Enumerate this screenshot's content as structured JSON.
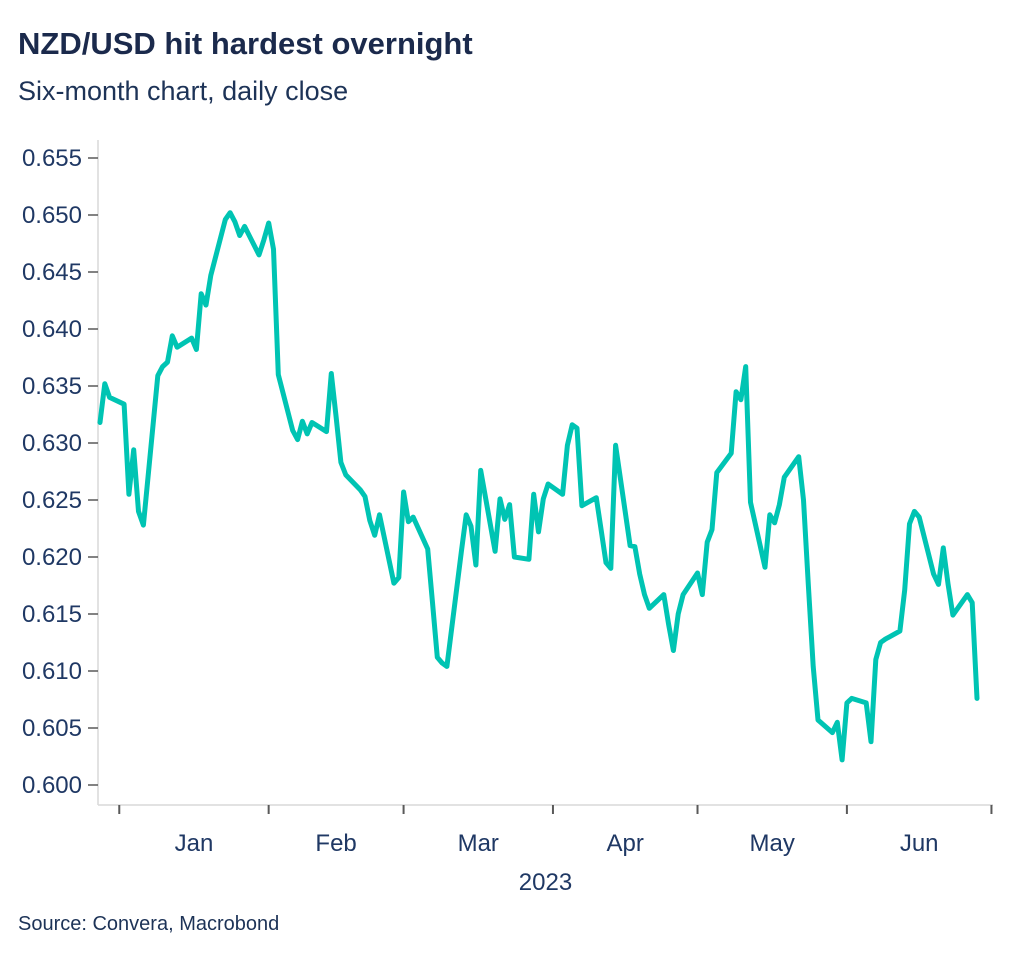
{
  "header": {
    "title": "NZD/USD hit hardest overnight",
    "subtitle": "Six-month chart, daily close"
  },
  "footer": {
    "source": "Source: Convera, Macrobond"
  },
  "colors": {
    "line": "#00C4B3",
    "title_text": "#1B2A4C",
    "axis_label_text": "#1F3864",
    "axis_line": "#D9D9D9",
    "tick_mark": "#595959",
    "background": "#FFFFFF"
  },
  "chart_data": {
    "type": "line",
    "title": "NZD/USD hit hardest overnight",
    "subtitle": "Six-month chart, daily close",
    "source": "Source: Convera, Macrobond",
    "legend": "none",
    "grid": "off",
    "x_axis": {
      "year_label": "2023",
      "month_labels": [
        "Jan",
        "Feb",
        "Mar",
        "Apr",
        "May",
        "Jun"
      ],
      "month_tick_dates": [
        "2023-01-01",
        "2023-02-01",
        "2023-03-01",
        "2023-04-01",
        "2023-05-01",
        "2023-06-01",
        "2023-07-01"
      ],
      "range_dates": [
        "2022-12-28",
        "2023-06-28"
      ]
    },
    "y_axis": {
      "ticks": [
        0.6,
        0.605,
        0.61,
        0.615,
        0.62,
        0.625,
        0.63,
        0.635,
        0.64,
        0.645,
        0.65,
        0.655
      ],
      "tick_decimals": 3,
      "ylim": [
        0.5982,
        0.6566
      ]
    },
    "series": [
      {
        "name": "NZD/USD daily close",
        "color": "#00C4B3",
        "points": [
          [
            "2022-12-28",
            0.6318
          ],
          [
            "2022-12-29",
            0.6352
          ],
          [
            "2022-12-30",
            0.634
          ],
          [
            "2023-01-02",
            0.6334
          ],
          [
            "2023-01-03",
            0.6255
          ],
          [
            "2023-01-04",
            0.6294
          ],
          [
            "2023-01-05",
            0.624
          ],
          [
            "2023-01-06",
            0.6228
          ],
          [
            "2023-01-09",
            0.6359
          ],
          [
            "2023-01-10",
            0.6367
          ],
          [
            "2023-01-11",
            0.6371
          ],
          [
            "2023-01-12",
            0.6394
          ],
          [
            "2023-01-13",
            0.6384
          ],
          [
            "2023-01-16",
            0.6392
          ],
          [
            "2023-01-17",
            0.6382
          ],
          [
            "2023-01-18",
            0.6431
          ],
          [
            "2023-01-19",
            0.6421
          ],
          [
            "2023-01-20",
            0.6447
          ],
          [
            "2023-01-23",
            0.6496
          ],
          [
            "2023-01-24",
            0.6502
          ],
          [
            "2023-01-25",
            0.6494
          ],
          [
            "2023-01-26",
            0.6482
          ],
          [
            "2023-01-27",
            0.649
          ],
          [
            "2023-01-30",
            0.6465
          ],
          [
            "2023-01-31",
            0.6478
          ],
          [
            "2023-02-01",
            0.6493
          ],
          [
            "2023-02-02",
            0.647
          ],
          [
            "2023-02-03",
            0.636
          ],
          [
            "2023-02-06",
            0.6311
          ],
          [
            "2023-02-07",
            0.6303
          ],
          [
            "2023-02-08",
            0.6319
          ],
          [
            "2023-02-09",
            0.6308
          ],
          [
            "2023-02-10",
            0.6318
          ],
          [
            "2023-02-13",
            0.631
          ],
          [
            "2023-02-14",
            0.6361
          ],
          [
            "2023-02-15",
            0.6323
          ],
          [
            "2023-02-16",
            0.6283
          ],
          [
            "2023-02-17",
            0.6272
          ],
          [
            "2023-02-20",
            0.6259
          ],
          [
            "2023-02-21",
            0.6253
          ],
          [
            "2023-02-22",
            0.6232
          ],
          [
            "2023-02-23",
            0.6219
          ],
          [
            "2023-02-24",
            0.6237
          ],
          [
            "2023-02-27",
            0.6177
          ],
          [
            "2023-02-28",
            0.6182
          ],
          [
            "2023-03-01",
            0.6257
          ],
          [
            "2023-03-02",
            0.6231
          ],
          [
            "2023-03-03",
            0.6235
          ],
          [
            "2023-03-06",
            0.6207
          ],
          [
            "2023-03-07",
            0.616
          ],
          [
            "2023-03-08",
            0.6112
          ],
          [
            "2023-03-09",
            0.6107
          ],
          [
            "2023-03-10",
            0.6104
          ],
          [
            "2023-03-13",
            0.6205
          ],
          [
            "2023-03-14",
            0.6237
          ],
          [
            "2023-03-15",
            0.6227
          ],
          [
            "2023-03-16",
            0.6193
          ],
          [
            "2023-03-17",
            0.6276
          ],
          [
            "2023-03-20",
            0.6205
          ],
          [
            "2023-03-21",
            0.6251
          ],
          [
            "2023-03-22",
            0.6233
          ],
          [
            "2023-03-23",
            0.6246
          ],
          [
            "2023-03-24",
            0.62
          ],
          [
            "2023-03-27",
            0.6198
          ],
          [
            "2023-03-28",
            0.6255
          ],
          [
            "2023-03-29",
            0.6222
          ],
          [
            "2023-03-30",
            0.6251
          ],
          [
            "2023-03-31",
            0.6264
          ],
          [
            "2023-04-03",
            0.6255
          ],
          [
            "2023-04-04",
            0.6298
          ],
          [
            "2023-04-05",
            0.6316
          ],
          [
            "2023-04-06",
            0.6313
          ],
          [
            "2023-04-07",
            0.6245
          ],
          [
            "2023-04-10",
            0.6252
          ],
          [
            "2023-04-11",
            0.6224
          ],
          [
            "2023-04-12",
            0.6195
          ],
          [
            "2023-04-13",
            0.619
          ],
          [
            "2023-04-14",
            0.6298
          ],
          [
            "2023-04-17",
            0.621
          ],
          [
            "2023-04-18",
            0.6209
          ],
          [
            "2023-04-19",
            0.6185
          ],
          [
            "2023-04-20",
            0.6167
          ],
          [
            "2023-04-21",
            0.6155
          ],
          [
            "2023-04-24",
            0.6167
          ],
          [
            "2023-04-25",
            0.6141
          ],
          [
            "2023-04-26",
            0.6118
          ],
          [
            "2023-04-27",
            0.615
          ],
          [
            "2023-04-28",
            0.6167
          ],
          [
            "2023-05-01",
            0.6186
          ],
          [
            "2023-05-02",
            0.6167
          ],
          [
            "2023-05-03",
            0.6213
          ],
          [
            "2023-05-04",
            0.6224
          ],
          [
            "2023-05-05",
            0.6274
          ],
          [
            "2023-05-08",
            0.6291
          ],
          [
            "2023-05-09",
            0.6345
          ],
          [
            "2023-05-10",
            0.6338
          ],
          [
            "2023-05-11",
            0.6367
          ],
          [
            "2023-05-12",
            0.6248
          ],
          [
            "2023-05-15",
            0.6191
          ],
          [
            "2023-05-16",
            0.6237
          ],
          [
            "2023-05-17",
            0.623
          ],
          [
            "2023-05-18",
            0.6246
          ],
          [
            "2023-05-19",
            0.627
          ],
          [
            "2023-05-22",
            0.6288
          ],
          [
            "2023-05-23",
            0.625
          ],
          [
            "2023-05-24",
            0.6176
          ],
          [
            "2023-05-25",
            0.6104
          ],
          [
            "2023-05-26",
            0.6057
          ],
          [
            "2023-05-29",
            0.6046
          ],
          [
            "2023-05-30",
            0.6055
          ],
          [
            "2023-05-31",
            0.6022
          ],
          [
            "2023-06-01",
            0.6072
          ],
          [
            "2023-06-02",
            0.6076
          ],
          [
            "2023-06-05",
            0.6072
          ],
          [
            "2023-06-06",
            0.6038
          ],
          [
            "2023-06-07",
            0.611
          ],
          [
            "2023-06-08",
            0.6125
          ],
          [
            "2023-06-09",
            0.6128
          ],
          [
            "2023-06-12",
            0.6135
          ],
          [
            "2023-06-13",
            0.6171
          ],
          [
            "2023-06-14",
            0.6229
          ],
          [
            "2023-06-15",
            0.624
          ],
          [
            "2023-06-16",
            0.6235
          ],
          [
            "2023-06-19",
            0.6185
          ],
          [
            "2023-06-20",
            0.6176
          ],
          [
            "2023-06-21",
            0.6208
          ],
          [
            "2023-06-22",
            0.6176
          ],
          [
            "2023-06-23",
            0.6149
          ],
          [
            "2023-06-26",
            0.6167
          ],
          [
            "2023-06-27",
            0.616
          ],
          [
            "2023-06-28",
            0.6076
          ]
        ]
      }
    ]
  }
}
